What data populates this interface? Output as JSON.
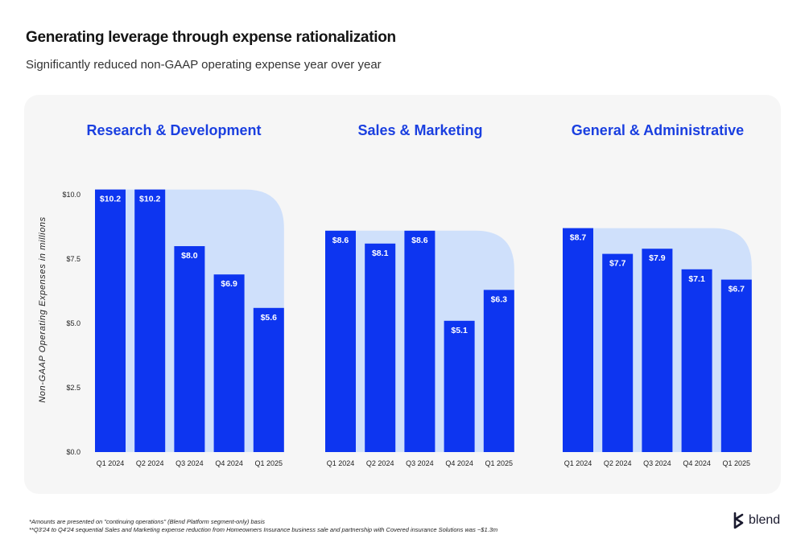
{
  "header": {
    "title": "Generating leverage through expense rationalization",
    "subtitle": "Significantly reduced non-GAAP operating expense year over year"
  },
  "colors": {
    "bar": "#0d35f0",
    "trend_fill": "#cfe0fb",
    "title_blue": "#1a3fe0",
    "panel_bg": "#f6f6f6"
  },
  "chart_data": [
    {
      "type": "bar",
      "title": "Research & Development",
      "categories": [
        "Q1 2024",
        "Q2 2024",
        "Q3 2024",
        "Q4 2024",
        "Q1 2025"
      ],
      "values": [
        10.2,
        10.2,
        8.0,
        6.9,
        5.6
      ],
      "labels": [
        "$10.2",
        "$10.2",
        "$8.0",
        "$6.9",
        "$5.6"
      ],
      "ylabel": "Non-GAAP Operating Expenses in millions",
      "yticks": [
        "$0.0",
        "$2.5",
        "$5.0",
        "$7.5",
        "$10.0"
      ],
      "ylim": [
        0,
        10
      ]
    },
    {
      "type": "bar",
      "title": "Sales & Marketing",
      "categories": [
        "Q1 2024",
        "Q2 2024",
        "Q3 2024",
        "Q4 2024",
        "Q1 2025"
      ],
      "values": [
        8.6,
        8.1,
        8.6,
        5.1,
        6.3
      ],
      "labels": [
        "$8.6",
        "$8.1",
        "$8.6",
        "$5.1",
        "$6.3"
      ],
      "ylim": [
        0,
        10
      ]
    },
    {
      "type": "bar",
      "title": "General & Administrative",
      "categories": [
        "Q1 2024",
        "Q2 2024",
        "Q3 2024",
        "Q4 2024",
        "Q1 2025"
      ],
      "values": [
        8.7,
        7.7,
        7.9,
        7.1,
        6.7
      ],
      "labels": [
        "$8.7",
        "$7.7",
        "$7.9",
        "$7.1",
        "$6.7"
      ],
      "ylim": [
        0,
        10
      ]
    }
  ],
  "footnotes": [
    "*Amounts are presented on \"continuing operations\" (Blend Platform segment-only) basis",
    "**Q3'24 to Q4'24 sequential Sales and Marketing expense reduction from Homeowners Insurance business sale and partnership with Covered insurance Solutions was ~$1.3m"
  ],
  "logo": {
    "text": "blend",
    "icon": "blend-logo-icon"
  }
}
